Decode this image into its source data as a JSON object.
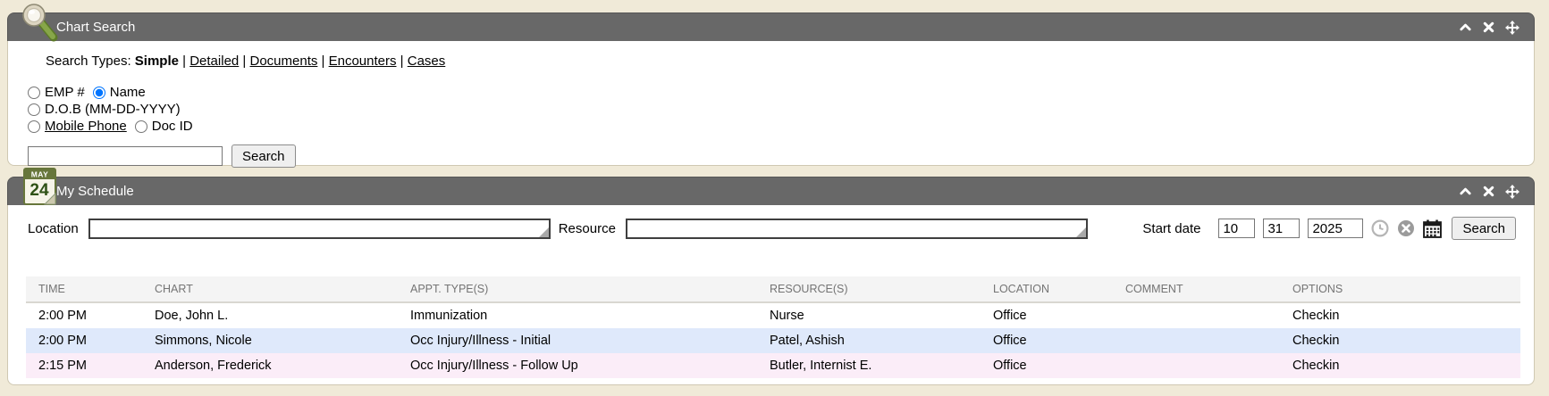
{
  "colors": {
    "page_bg": "#f0ead8",
    "panel_header_bg": "#686868",
    "table_header_bg": "#f4f4f4",
    "row_white": "#ffffff",
    "row_blue": "#dfe9fb",
    "row_pink": "#fbedf8",
    "radio_selected": "#1676d2"
  },
  "chart_search": {
    "icon": "magnifier-icon",
    "title": "Chart Search",
    "window_controls": [
      "collapse",
      "close",
      "move"
    ],
    "search_types_label": "Search Types:",
    "search_types": [
      {
        "label": "Simple",
        "active": true
      },
      {
        "label": "Detailed",
        "link": true
      },
      {
        "label": "Documents",
        "link": true
      },
      {
        "label": "Encounters",
        "link": true
      },
      {
        "label": "Cases",
        "link": true
      }
    ],
    "radio_rows": [
      [
        {
          "label": "EMP #"
        },
        {
          "label": "Name",
          "checked": true
        }
      ],
      [
        {
          "label": "D.O.B (MM-DD-YYYY)"
        }
      ],
      [
        {
          "label": "Mobile Phone",
          "underline": true
        },
        {
          "label": "Doc ID"
        }
      ]
    ],
    "query_input": {
      "value": ""
    },
    "search_button": "Search"
  },
  "my_schedule": {
    "icon": "calendar-icon",
    "title": "My Schedule",
    "calendar_badge": {
      "month": "MAY",
      "day": "24"
    },
    "window_controls": [
      "collapse",
      "close",
      "move"
    ],
    "filters": {
      "location_label": "Location",
      "location_value": "",
      "resource_label": "Resource",
      "resource_value": "",
      "start_date_label": "Start date",
      "date_month": "10",
      "date_day": "31",
      "date_year": "2025",
      "icons": [
        "clock-icon",
        "clear-icon",
        "calendar-picker-icon"
      ],
      "search_button": "Search"
    },
    "table": {
      "columns": [
        "TIME",
        "CHART",
        "APPT. TYPE(S)",
        "RESOURCE(S)",
        "LOCATION",
        "COMMENT",
        "OPTIONS"
      ],
      "column_keys": [
        "time",
        "chart",
        "appt-type",
        "resource",
        "location",
        "comment",
        "options"
      ],
      "rows": [
        {
          "cells": [
            "2:00 PM",
            "Doe, John L.",
            "Immunization",
            "Nurse",
            "Office",
            "",
            "Checkin"
          ],
          "bg": "#ffffff"
        },
        {
          "cells": [
            "2:00 PM",
            "Simmons, Nicole",
            "Occ Injury/Illness - Initial",
            "Patel, Ashish",
            "Office",
            "",
            "Checkin"
          ],
          "bg": "#dfe9fb"
        },
        {
          "cells": [
            "2:15 PM",
            "Anderson, Frederick",
            "Occ Injury/Illness - Follow Up",
            "Butler, Internist E.",
            "Office",
            "",
            "Checkin"
          ],
          "bg": "#fbedf8"
        }
      ]
    }
  }
}
